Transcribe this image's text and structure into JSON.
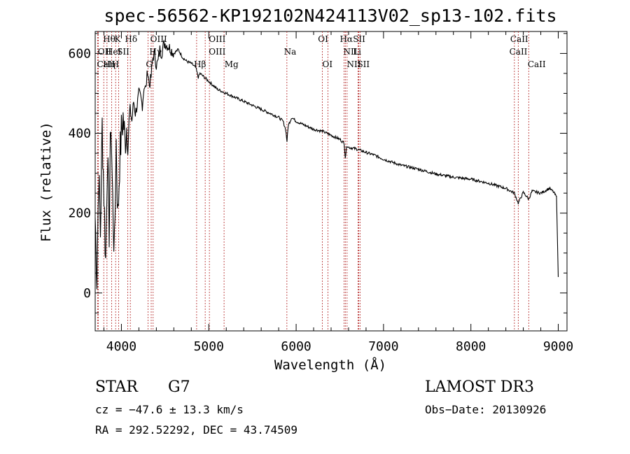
{
  "chart_data": {
    "type": "line",
    "title": "spec-56562-KP192102N424113V02_sp13-102.fits",
    "xlabel": "Wavelength (Å)",
    "ylabel": "Flux (relative)",
    "xlim": [
      3700,
      9100
    ],
    "ylim": [
      -95,
      655
    ],
    "xticks": [
      4000,
      5000,
      6000,
      7000,
      8000,
      9000
    ],
    "xtick_labels": [
      "4000",
      "5000",
      "6000",
      "7000",
      "8000",
      "9000"
    ],
    "yticks": [
      0,
      200,
      400,
      600
    ],
    "ytick_labels": [
      "0",
      "200",
      "400",
      "600"
    ],
    "series": [
      {
        "name": "flux",
        "x": [
          3700,
          3720,
          3740,
          3760,
          3780,
          3800,
          3820,
          3840,
          3860,
          3880,
          3900,
          3920,
          3940,
          3960,
          3980,
          4000,
          4020,
          4040,
          4060,
          4080,
          4100,
          4120,
          4140,
          4160,
          4180,
          4200,
          4220,
          4240,
          4260,
          4280,
          4300,
          4320,
          4340,
          4360,
          4380,
          4400,
          4420,
          4440,
          4460,
          4480,
          4500,
          4550,
          4600,
          4650,
          4700,
          4750,
          4800,
          4850,
          4880,
          4900,
          4950,
          5000,
          5050,
          5100,
          5150,
          5200,
          5300,
          5400,
          5500,
          5600,
          5700,
          5800,
          5850,
          5880,
          5895,
          5910,
          5950,
          6000,
          6100,
          6200,
          6300,
          6400,
          6500,
          6550,
          6563,
          6580,
          6600,
          6700,
          6800,
          6900,
          7000,
          7200,
          7400,
          7600,
          7800,
          8000,
          8200,
          8400,
          8498,
          8542,
          8600,
          8662,
          8700,
          8800,
          8900,
          8950,
          8980,
          9000
        ],
        "y": [
          190,
          40,
          300,
          150,
          420,
          250,
          80,
          350,
          160,
          440,
          230,
          100,
          380,
          190,
          330,
          400,
          440,
          380,
          420,
          390,
          460,
          430,
          480,
          450,
          470,
          500,
          490,
          470,
          520,
          510,
          560,
          520,
          540,
          590,
          600,
          570,
          580,
          610,
          600,
          620,
          625,
          615,
          600,
          610,
          590,
          580,
          575,
          565,
          540,
          550,
          540,
          530,
          520,
          510,
          505,
          500,
          490,
          480,
          470,
          460,
          450,
          440,
          430,
          410,
          380,
          420,
          440,
          430,
          420,
          410,
          405,
          395,
          385,
          375,
          340,
          370,
          365,
          360,
          352,
          345,
          335,
          320,
          310,
          298,
          290,
          285,
          275,
          262,
          250,
          225,
          252,
          235,
          255,
          250,
          262,
          252,
          240,
          40
        ]
      }
    ],
    "lines": [
      {
        "name": "OII",
        "x": 3727
      },
      {
        "name": "CaII",
        "x": 3735
      },
      {
        "name": "Hθ",
        "x": 3798
      },
      {
        "name": "Hη",
        "x": 3835
      },
      {
        "name": "HeI",
        "x": 3889
      },
      {
        "name": "K",
        "x": 3934
      },
      {
        "name": "SII",
        "x": 4072
      },
      {
        "name": "H",
        "x": 3969
      },
      {
        "name": "Hδ",
        "x": 4102
      },
      {
        "name": "G",
        "x": 4304
      },
      {
        "name": "OIII",
        "x": 4363
      },
      {
        "name": "Hγ",
        "x": 4341
      },
      {
        "name": "Hβ",
        "x": 4861
      },
      {
        "name": "OIII",
        "x": 4959
      },
      {
        "name": "OIII",
        "x": 5007
      },
      {
        "name": "Mg",
        "x": 5175
      },
      {
        "name": "Na",
        "x": 5894
      },
      {
        "name": "OI",
        "x": 6300
      },
      {
        "name": "OI",
        "x": 6364
      },
      {
        "name": "Hα",
        "x": 6563
      },
      {
        "name": "NII",
        "x": 6548
      },
      {
        "name": "NII",
        "x": 6583
      },
      {
        "name": "SII",
        "x": 6717
      },
      {
        "name": "Li",
        "x": 6708
      },
      {
        "name": "SII",
        "x": 6731
      },
      {
        "name": "CaII",
        "x": 8498
      },
      {
        "name": "CaII",
        "x": 8542
      },
      {
        "name": "CaII",
        "x": 8662
      }
    ],
    "line_labels": [
      "Hθ",
      "K",
      "Hδ",
      "OII",
      "HeI",
      "SII",
      "OIII",
      "Hγ",
      "OIII",
      "OIII",
      "CaII",
      "Hη",
      "H",
      "G",
      "Hβ",
      "Mg",
      "Na",
      "OI",
      "OI",
      "Hα",
      "SII",
      "NII",
      "Li",
      "NII",
      "SII",
      "CaII",
      "CaII",
      "CaII"
    ],
    "grid": false
  },
  "info": {
    "object_type": "STAR",
    "subclass": "G7",
    "survey": "LAMOST DR3",
    "cz": "cz = −47.6 ± 13.3 km/s",
    "obs_date": "Obs−Date: 20130926",
    "coords": "RA = 292.52292, DEC =  43.74509"
  }
}
